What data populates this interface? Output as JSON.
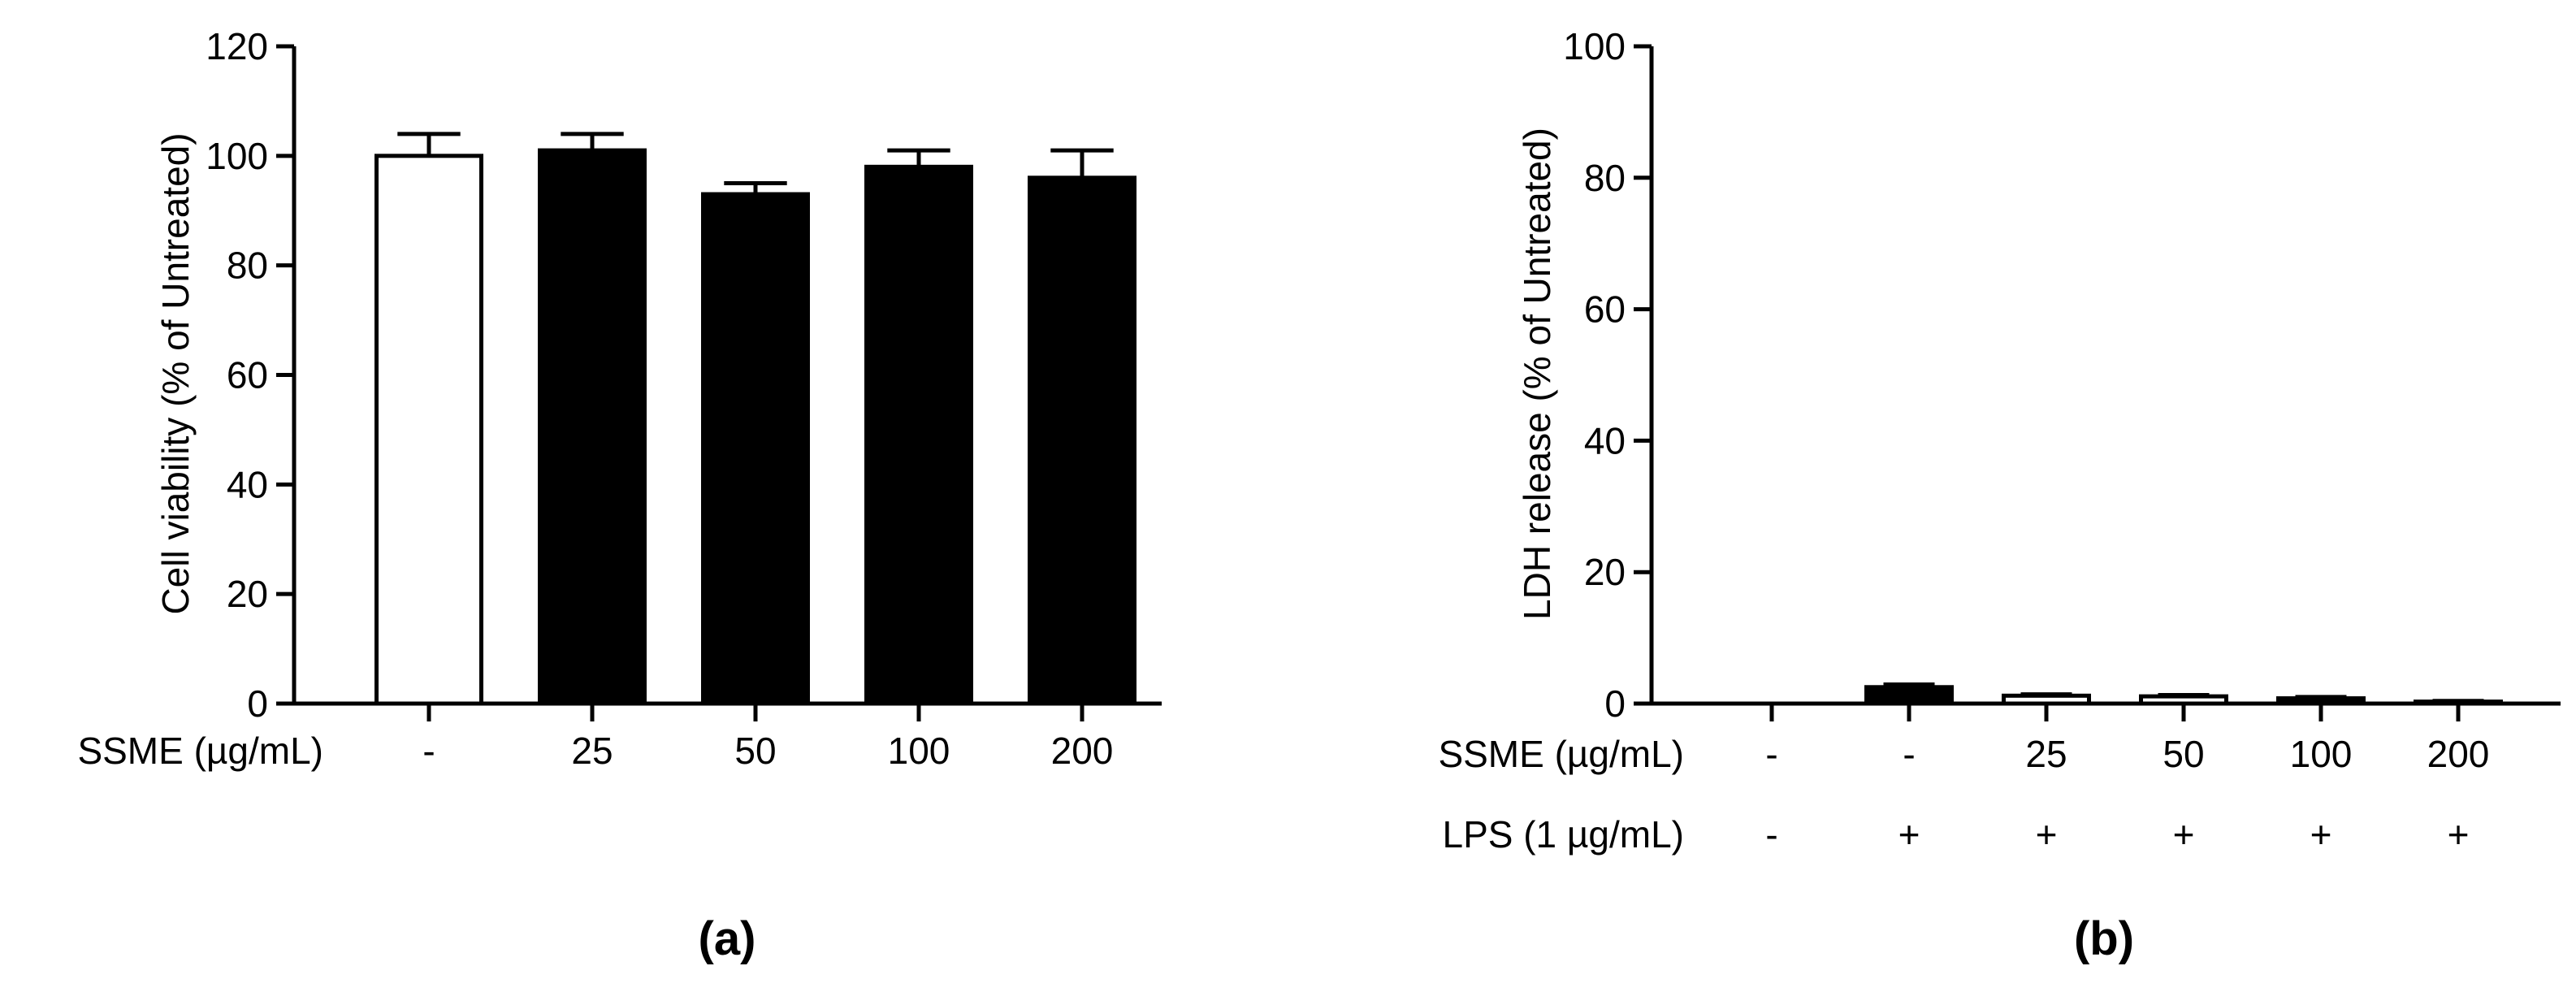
{
  "chart_data": [
    {
      "panel": "(a)",
      "type": "bar",
      "title": "",
      "xlabel": "",
      "ylabel": "Cell viability (% of Untreated)",
      "ylim": [
        0,
        120
      ],
      "yticks": [
        0,
        20,
        40,
        60,
        80,
        100,
        120
      ],
      "grid": false,
      "legend": "none",
      "category_rows": [
        {
          "label": "SSME (µg/mL)",
          "values": [
            "-",
            "25",
            "50",
            "100",
            "200"
          ]
        }
      ],
      "values": [
        100,
        101,
        93,
        98,
        96
      ],
      "errors": [
        4,
        3,
        2,
        3,
        5
      ],
      "fills": [
        "#ffffff",
        "#000000",
        "#000000",
        "#000000",
        "#000000"
      ]
    },
    {
      "panel": "(b)",
      "type": "bar",
      "title": "",
      "xlabel": "",
      "ylabel": "LDH release (% of Untreated)",
      "ylim": [
        0,
        100
      ],
      "yticks": [
        0,
        20,
        40,
        60,
        80,
        100
      ],
      "grid": false,
      "legend": "none",
      "category_rows": [
        {
          "label": "SSME (µg/mL)",
          "values": [
            "-",
            "-",
            "25",
            "50",
            "100",
            "200"
          ]
        },
        {
          "label": "LPS (1 µg/mL)",
          "values": [
            "-",
            "+",
            "+",
            "+",
            "+",
            "+"
          ]
        }
      ],
      "values": [
        0,
        2.5,
        1.2,
        1.1,
        0.8,
        0.3
      ],
      "errors": [
        0,
        0.4,
        0.2,
        0.2,
        0.2,
        0.1
      ],
      "fills": [
        "#ffffff",
        "#000000",
        "#ffffff",
        "#ffffff",
        "#000000",
        "#ffffff"
      ]
    }
  ]
}
